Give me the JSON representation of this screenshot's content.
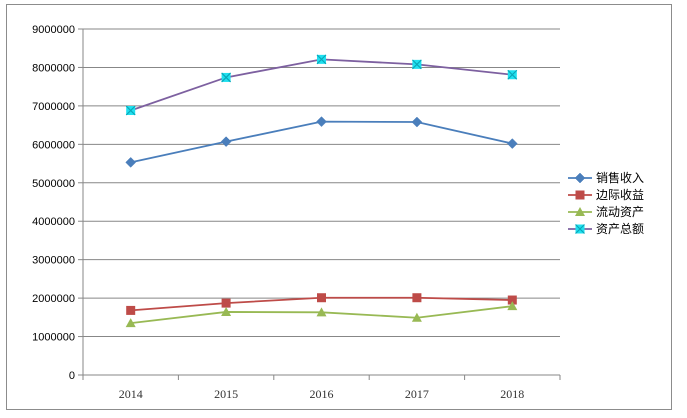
{
  "chart_data": {
    "type": "line",
    "title": "",
    "xlabel": "",
    "ylabel": "",
    "categories": [
      "2014",
      "2015",
      "2016",
      "2017",
      "2018"
    ],
    "ylim": [
      0,
      9000000
    ],
    "yticks": [
      "0",
      "1000000",
      "2000000",
      "3000000",
      "4000000",
      "5000000",
      "6000000",
      "7000000",
      "8000000",
      "9000000"
    ],
    "grid": true,
    "legend_position": "right",
    "series": [
      {
        "name": "销售收入",
        "color": "#4a7ebb",
        "marker": "diamond",
        "values": [
          5530000,
          6070000,
          6590000,
          6580000,
          6020000
        ]
      },
      {
        "name": "边际收益",
        "color": "#be4b48",
        "marker": "square",
        "values": [
          1680000,
          1870000,
          2010000,
          2010000,
          1950000
        ]
      },
      {
        "name": "流动资产",
        "color": "#98b954",
        "marker": "triangle",
        "values": [
          1350000,
          1640000,
          1630000,
          1490000,
          1790000
        ]
      },
      {
        "name": "资产总额",
        "color": "#7d60a0",
        "marker": "x-square",
        "marker_color": "#1fe0ef",
        "values": [
          6880000,
          7740000,
          8210000,
          8080000,
          7810000
        ]
      }
    ]
  }
}
